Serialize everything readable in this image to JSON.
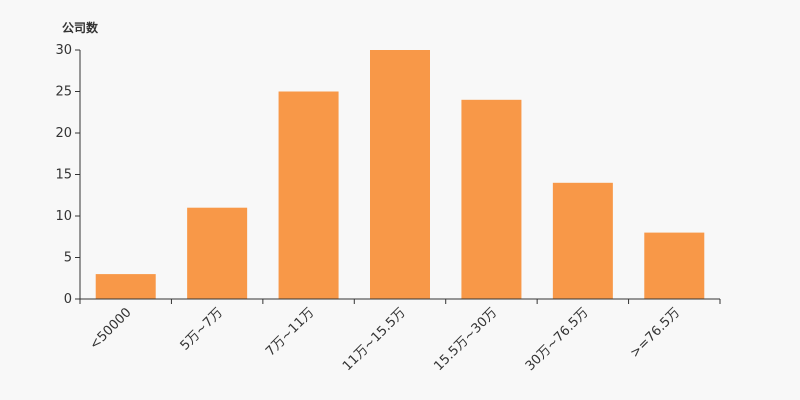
{
  "chart_data": {
    "type": "bar",
    "title": "",
    "ylabel": "公司数",
    "xlabel": "",
    "categories": [
      "<50000",
      "5万~7万",
      "7万~11万",
      "11万~15.5万",
      "15.5万~30万",
      "30万~76.5万",
      ">=76.5万"
    ],
    "values": [
      3,
      11,
      25,
      30,
      24,
      14,
      8
    ],
    "ylim": [
      0,
      30
    ],
    "yticks": [
      0,
      5,
      10,
      15,
      20,
      25,
      30
    ],
    "grid": false,
    "bar_color": "#f89848"
  }
}
